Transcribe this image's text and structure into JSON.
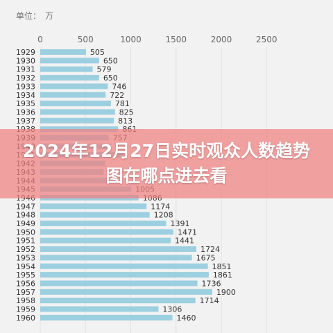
{
  "overlay": {
    "title": "2024年12月27日实时观众人数趋势图在哪点进去看"
  },
  "colors": {
    "bar": "#9ccfe0",
    "grid": "#e3e3e3",
    "banner": "#f08080"
  },
  "chart_data": {
    "type": "bar",
    "orientation": "horizontal",
    "unit_label": "单位：",
    "unit": "万",
    "xlim": [
      0,
      2500
    ],
    "x_ticks": [
      0,
      500,
      1000,
      1500,
      2000,
      2500
    ],
    "grid": true,
    "categories": [
      "1929",
      "1930",
      "1931",
      "1932",
      "1933",
      "1934",
      "1935",
      "1936",
      "1937",
      "1938",
      "1939",
      "1940",
      "1941",
      "1942",
      "1943",
      "1944",
      "1945",
      "1946",
      "1947",
      "1948",
      "1949",
      "1950",
      "1951",
      "1952",
      "1953",
      "1954",
      "1955",
      "1956",
      "1957",
      "1958",
      "1959",
      "1960"
    ],
    "values": [
      505,
      650,
      579,
      650,
      746,
      722,
      781,
      825,
      813,
      861,
      757,
      780,
      920,
      720,
      700,
      760,
      1005,
      1086,
      1174,
      1208,
      1391,
      1471,
      1441,
      1724,
      1675,
      1851,
      1861,
      1736,
      1900,
      1714,
      1306,
      1460
    ],
    "value_labels": [
      "505",
      "650",
      "579",
      "650",
      "746",
      "722",
      "781",
      "825",
      "813",
      "861",
      "757",
      "",
      "",
      "",
      "",
      "",
      "1005",
      "1086",
      "1174",
      "1208",
      "1391",
      "1471",
      "1441",
      "1724",
      "1675",
      "1851",
      "1861",
      "1736",
      "1900",
      "1714",
      "1306",
      "1460"
    ]
  }
}
